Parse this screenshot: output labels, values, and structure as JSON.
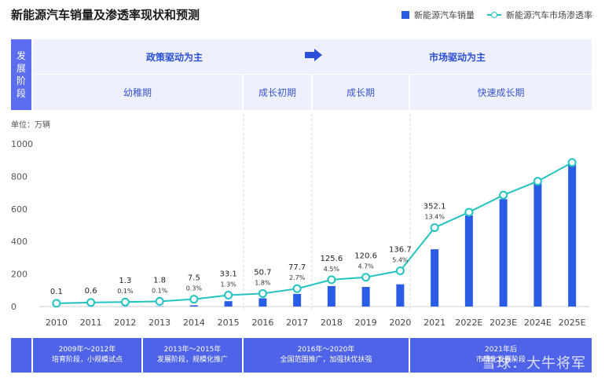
{
  "title": "新能源汽车销量及渗透率现状和预测",
  "legend": {
    "bar_label": "新能源汽车销量",
    "line_label": "新能源汽车市场渗透率"
  },
  "phase_label": "发展阶段",
  "policy": {
    "left": "政策驱动为主",
    "right": "市场驱动为主"
  },
  "stages": [
    "幼稚期",
    "成长初期",
    "成长期",
    "快速成长期"
  ],
  "unit": "单位：万辆",
  "footer": [
    {
      "line1": "2009年～2012年",
      "line2": "培育阶段，小规模试点"
    },
    {
      "line1": "2013年～2015年",
      "line2": "发展阶段，规模化推广"
    },
    {
      "line1": "2016年～2020年",
      "line2": "全国范围推广，加强扶优扶强"
    },
    {
      "line1": "2021年后",
      "line2": "市场化发展阶段"
    }
  ],
  "watermark": "雪球：大牛将军",
  "colors": {
    "bar": "#2b5ce6",
    "line": "#22c3c0",
    "accent": "#4f63e8"
  },
  "chart_data": {
    "type": "bar",
    "categories": [
      "2010",
      "2011",
      "2012",
      "2013",
      "2014",
      "2015",
      "2016",
      "2017",
      "2018",
      "2019",
      "2020",
      "2021",
      "2022E",
      "2023E",
      "2024E",
      "2025E"
    ],
    "series": [
      {
        "name": "新能源汽车销量",
        "type": "bar",
        "values": [
          0.1,
          0.6,
          1.3,
          1.8,
          7.5,
          33.1,
          50.7,
          77.7,
          125.6,
          120.6,
          136.7,
          352.1,
          560,
          660,
          760,
          870
        ],
        "labels": [
          "0.1",
          "0.6",
          "1.3",
          "1.8",
          "7.5",
          "33.1",
          "50.7",
          "77.7",
          "125.6",
          "120.6",
          "136.7",
          "352.1",
          "",
          "",
          "",
          ""
        ]
      },
      {
        "name": "新能源汽车市场渗透率",
        "type": "line",
        "percent_labels": [
          "",
          "",
          "0.1%",
          "0.1%",
          "0.3%",
          "1.3%",
          "1.8%",
          "2.7%",
          "4.5%",
          "4.7%",
          "5.4%",
          "13.4%",
          "",
          "",
          "",
          ""
        ],
        "values": [
          20,
          25,
          28,
          32,
          45,
          70,
          80,
          110,
          165,
          180,
          220,
          485,
          580,
          685,
          770,
          885
        ]
      }
    ],
    "y_ticks": [
      "0",
      "200",
      "400",
      "600",
      "800",
      "1000"
    ],
    "ylim": [
      0,
      1000
    ],
    "grid": false,
    "legend_position": "top-right"
  }
}
